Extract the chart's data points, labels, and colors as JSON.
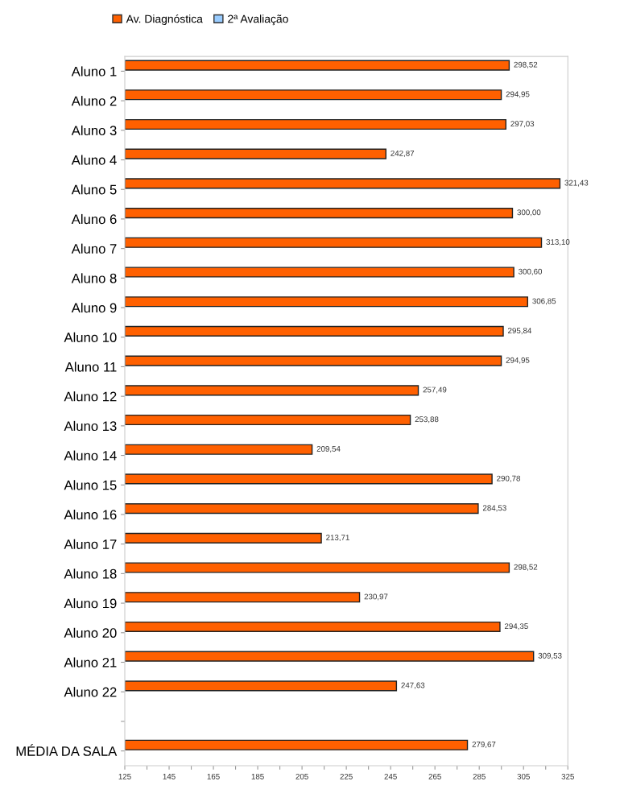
{
  "chart_data": {
    "type": "bar",
    "orientation": "horizontal",
    "categories": [
      "Aluno 1",
      "Aluno 2",
      "Aluno 3",
      "Aluno 4",
      "Aluno 5",
      "Aluno 6",
      "Aluno 7",
      "Aluno 8",
      "Aluno 9",
      "Aluno 10",
      "Aluno 11",
      "Aluno 12",
      "Aluno 13",
      "Aluno 14",
      "Aluno 15",
      "Aluno 16",
      "Aluno 17",
      "Aluno 18",
      "Aluno 19",
      "Aluno 20",
      "Aluno 21",
      "Aluno 22",
      null,
      "MÉDIA DA SALA"
    ],
    "series": [
      {
        "name": "Av. Diagnóstica",
        "color": "#ff6000",
        "values": [
          298.52,
          294.95,
          297.03,
          242.87,
          321.43,
          300.0,
          313.1,
          300.6,
          306.85,
          295.84,
          294.95,
          257.49,
          253.88,
          209.54,
          290.78,
          284.53,
          213.71,
          298.52,
          230.97,
          294.35,
          309.53,
          247.63,
          null,
          279.67
        ],
        "value_labels": [
          "298,52",
          "294,95",
          "297,03",
          "242,87",
          "321,43",
          "300,00",
          "313,10",
          "300,60",
          "306,85",
          "295,84",
          "294,95",
          "257,49",
          "253,88",
          "209,54",
          "290,78",
          "284,53",
          "213,71",
          "298,52",
          "230,97",
          "294,35",
          "309,53",
          "247,63",
          null,
          "279,67"
        ]
      },
      {
        "name": "2ª Avaliação",
        "color": "#99ccff",
        "values": [
          null,
          null,
          null,
          null,
          null,
          null,
          null,
          null,
          null,
          null,
          null,
          null,
          null,
          null,
          null,
          null,
          null,
          null,
          null,
          null,
          null,
          null,
          null,
          null
        ]
      }
    ],
    "xlim": [
      125,
      325
    ],
    "xticks": [
      125,
      {
        "value": 135,
        "label": null
      },
      145,
      {
        "value": 155,
        "label": null
      },
      165,
      {
        "value": 175,
        "label": null
      },
      185,
      {
        "value": 195,
        "label": null
      },
      205,
      {
        "value": 215,
        "label": null
      },
      225,
      {
        "value": 235,
        "label": null
      },
      245,
      {
        "value": 255,
        "label": null
      },
      265,
      {
        "value": 275,
        "label": null
      },
      285,
      {
        "value": 295,
        "label": null
      },
      305,
      {
        "value": 315,
        "label": null
      },
      325
    ],
    "grid": false,
    "legend": "top"
  }
}
